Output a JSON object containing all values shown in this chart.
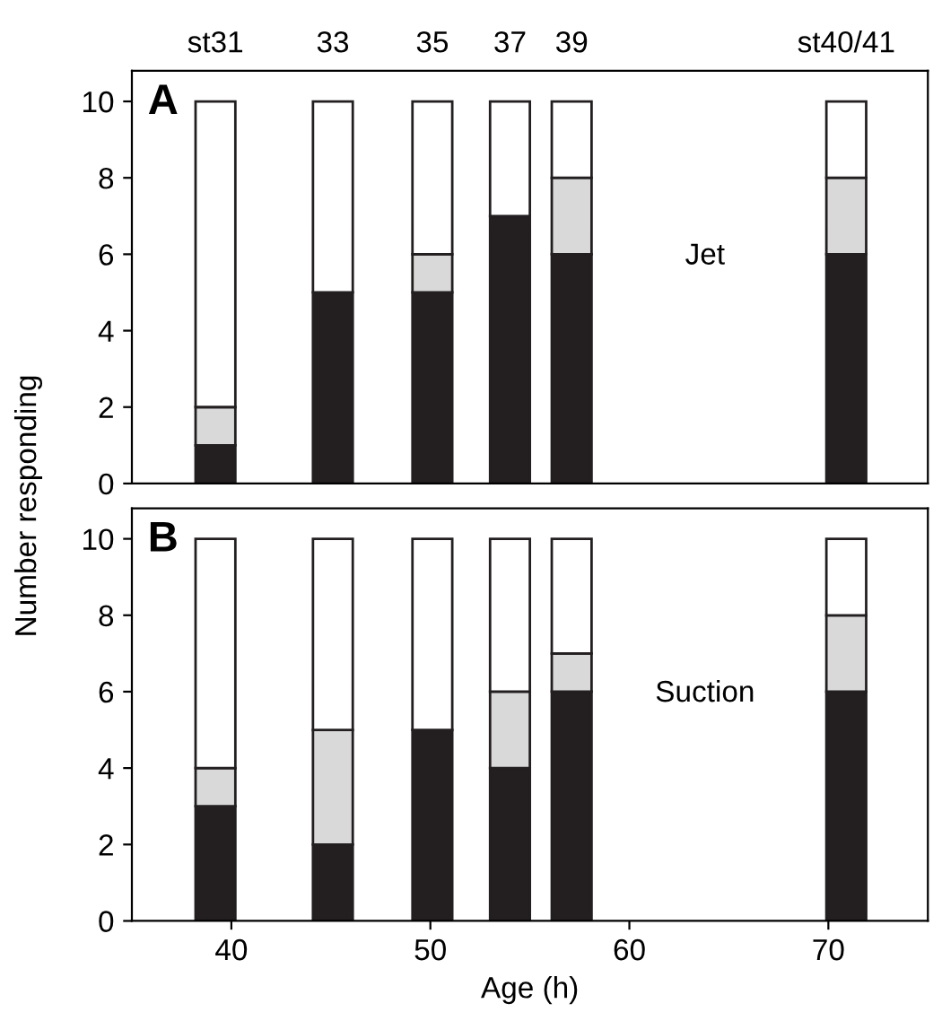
{
  "chart_data": [
    {
      "type": "bar",
      "stacked": true,
      "x": [
        39.2,
        45.1,
        50.1,
        54.0,
        57.1,
        70.9
      ],
      "ylabel": "Number responding",
      "annotations": [
        "A",
        "Jet",
        "st31",
        "33",
        "35",
        "37",
        "39",
        "st40/41"
      ],
      "series": [
        {
          "color": "#231f20",
          "values": [
            1,
            5,
            5,
            7,
            6,
            6
          ]
        },
        {
          "color": "#d9d9d9",
          "values": [
            1,
            0,
            1,
            0,
            2,
            2
          ]
        },
        {
          "color": "#ffffff",
          "values": [
            8,
            5,
            4,
            3,
            2,
            2
          ]
        }
      ],
      "xlim": [
        35,
        75
      ],
      "ylim": [
        0,
        10.8
      ],
      "yticks": [
        0,
        2,
        4,
        6,
        8,
        10
      ],
      "tick_labels": "y",
      "grid": false,
      "legend": false
    },
    {
      "type": "bar",
      "stacked": true,
      "x": [
        39.2,
        45.1,
        50.1,
        54.0,
        57.1,
        70.9
      ],
      "xlabel": "Age (h)",
      "annotations": [
        "B",
        "Suction"
      ],
      "series": [
        {
          "color": "#231f20",
          "values": [
            3,
            2,
            5,
            4,
            6,
            6
          ]
        },
        {
          "color": "#d9d9d9",
          "values": [
            1,
            3,
            0,
            2,
            1,
            2
          ]
        },
        {
          "color": "#ffffff",
          "values": [
            6,
            5,
            5,
            4,
            3,
            2
          ]
        }
      ],
      "xlim": [
        35,
        75
      ],
      "xticks": [
        40,
        50,
        60,
        70
      ],
      "ylim": [
        0,
        10.8
      ],
      "yticks": [
        0,
        2,
        4,
        6,
        8,
        10
      ],
      "grid": false,
      "legend": false
    }
  ]
}
